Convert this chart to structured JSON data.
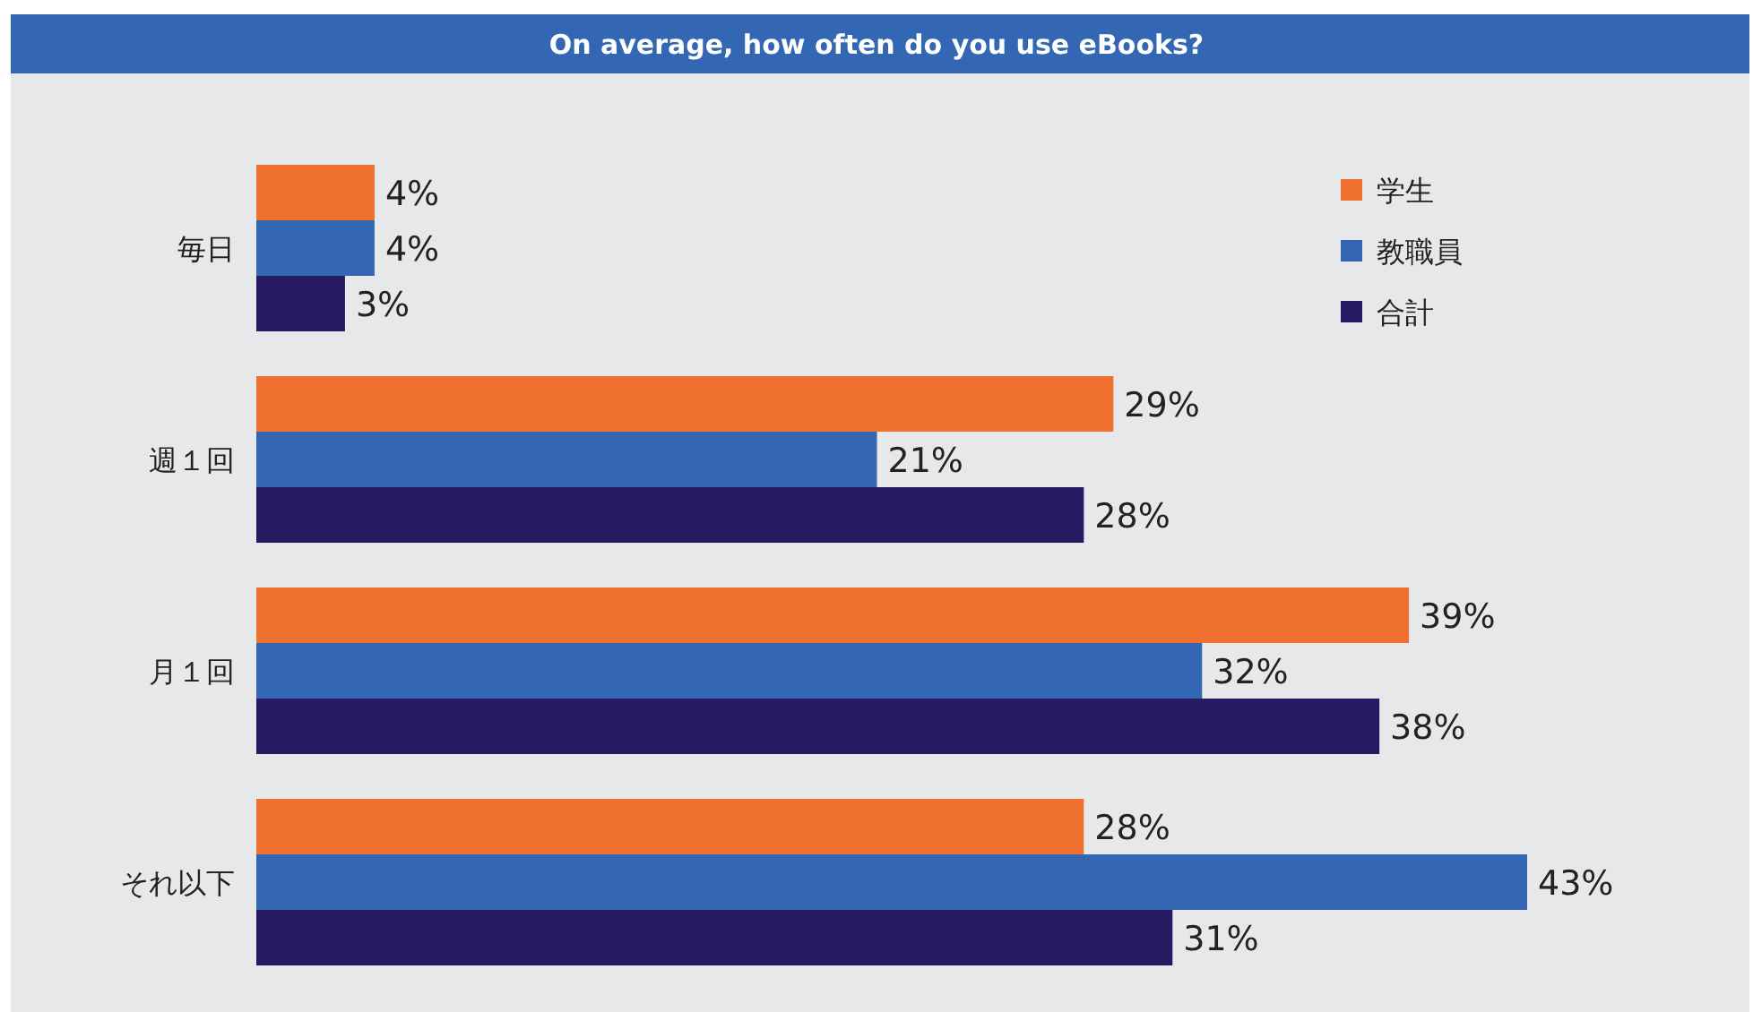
{
  "chart_data": {
    "type": "bar",
    "orientation": "horizontal",
    "title": "On average, how often do you use eBooks?",
    "categories": [
      "毎日",
      "週１回",
      "月１回",
      "それ以下"
    ],
    "legend": "top right",
    "series": [
      {
        "name": "学生",
        "color": "#f07030",
        "values": [
          4,
          29,
          39,
          28
        ],
        "value_labels": [
          "4%",
          "29%",
          "39%",
          "28%"
        ]
      },
      {
        "name": "教職員",
        "color": "#3366b3",
        "values": [
          4,
          21,
          32,
          43
        ],
        "value_labels": [
          "4%",
          "21%",
          "32%",
          "43%"
        ]
      },
      {
        "name": "合計",
        "color": "#261a63",
        "values": [
          3,
          28,
          38,
          31
        ],
        "value_labels": [
          "3%",
          "28%",
          "38%",
          "31%"
        ]
      }
    ]
  }
}
